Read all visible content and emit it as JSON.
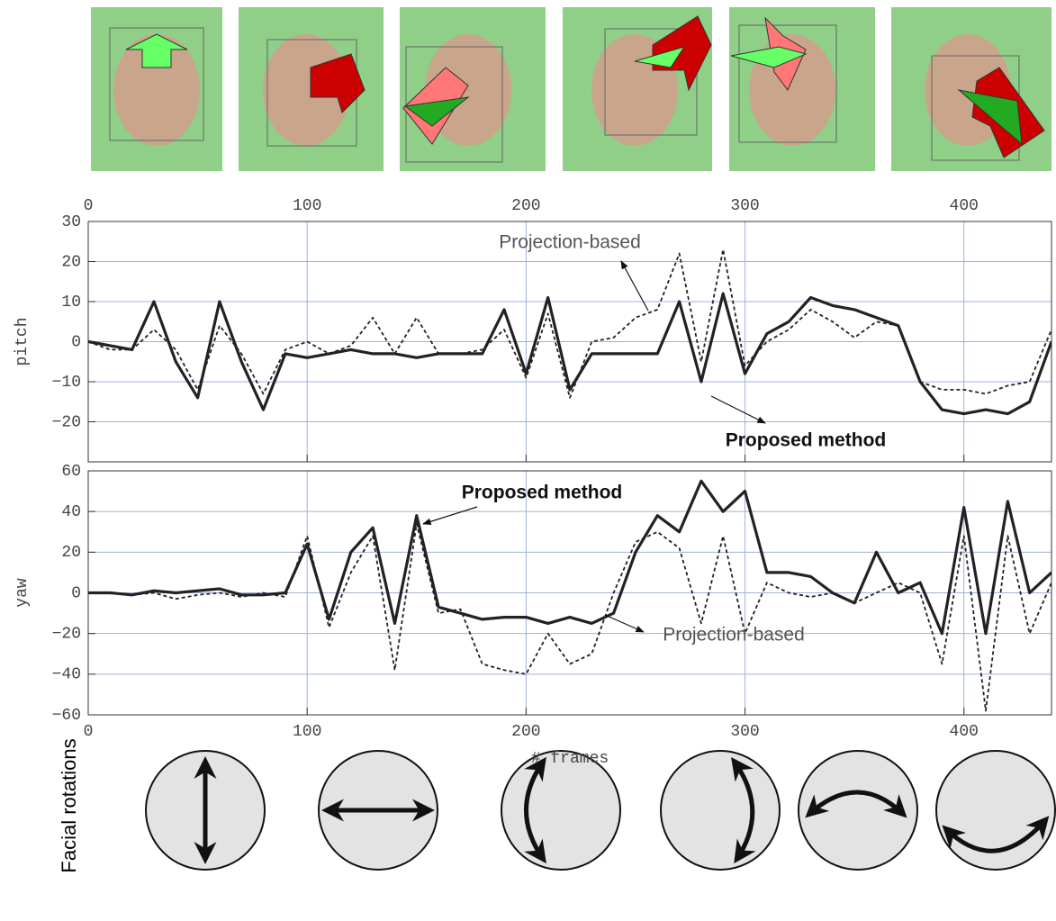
{
  "chart_data": [
    {
      "type": "line",
      "ylabel": "pitch",
      "x": [
        0,
        10,
        20,
        30,
        40,
        50,
        60,
        70,
        80,
        90,
        100,
        110,
        120,
        130,
        140,
        150,
        160,
        170,
        180,
        190,
        200,
        210,
        220,
        230,
        240,
        250,
        260,
        270,
        280,
        290,
        300,
        310,
        320,
        330,
        340,
        350,
        360,
        370,
        380,
        390,
        400,
        410,
        420,
        430,
        440
      ],
      "series": [
        {
          "name": "Proposed method",
          "color": "#222222",
          "dashed": false,
          "values": [
            0,
            -1,
            -2,
            10,
            -5,
            -14,
            10,
            -5,
            -17,
            -3,
            -4,
            -3,
            -2,
            -3,
            -3,
            -4,
            -3,
            -3,
            -3,
            8,
            -8,
            11,
            -12,
            -3,
            -3,
            -3,
            -3,
            10,
            -10,
            12,
            -8,
            2,
            5,
            11,
            9,
            8,
            6,
            4,
            -10,
            -17,
            -18,
            -17,
            -18,
            -15,
            0
          ]
        },
        {
          "name": "Projection-based",
          "color": "#222222",
          "dashed": true,
          "values": [
            0,
            -2,
            -2,
            3,
            -2,
            -12,
            4,
            -3,
            -13,
            -2,
            0,
            -3,
            -1,
            6,
            -3,
            6,
            -3,
            -3,
            -2,
            3,
            -9,
            7,
            -14,
            0,
            1,
            6,
            8,
            22,
            -5,
            23,
            -6,
            0,
            3,
            8,
            5,
            1,
            5,
            4,
            -10,
            -12,
            -12,
            -13,
            -11,
            -10,
            3
          ]
        }
      ],
      "xlim": [
        0,
        440
      ],
      "xticks": [
        0,
        100,
        200,
        300,
        400
      ],
      "ylim": [
        -30,
        30
      ],
      "yticks": [
        30,
        20,
        10,
        0,
        {
          "value": -10,
          "label": "−10"
        },
        {
          "value": -20,
          "label": "−20"
        }
      ],
      "grid": true
    },
    {
      "type": "line",
      "ylabel": "yaw",
      "xlabel": "# frames",
      "x": [
        0,
        10,
        20,
        30,
        40,
        50,
        60,
        70,
        80,
        90,
        100,
        110,
        120,
        130,
        140,
        150,
        160,
        170,
        180,
        190,
        200,
        210,
        220,
        230,
        240,
        250,
        260,
        270,
        280,
        290,
        300,
        310,
        320,
        330,
        340,
        350,
        360,
        370,
        380,
        390,
        400,
        410,
        420,
        430,
        440
      ],
      "series": [
        {
          "name": "Proposed method",
          "color": "#222222",
          "dashed": false,
          "values": [
            0,
            0,
            -1,
            1,
            0,
            1,
            2,
            -1,
            -1,
            0,
            24,
            -13,
            20,
            32,
            -15,
            38,
            -7,
            -10,
            -13,
            -12,
            -12,
            -15,
            -12,
            -15,
            -10,
            20,
            38,
            30,
            55,
            40,
            50,
            10,
            10,
            8,
            0,
            -5,
            20,
            0,
            5,
            -20,
            42,
            -20,
            45,
            0,
            10
          ]
        },
        {
          "name": "Projection-based",
          "color": "#222222",
          "dashed": true,
          "values": [
            0,
            0,
            -1,
            0,
            -3,
            -1,
            0,
            -2,
            0,
            -2,
            28,
            -17,
            10,
            28,
            -38,
            34,
            -10,
            -8,
            -35,
            -38,
            -40,
            -20,
            -35,
            -30,
            0,
            25,
            30,
            22,
            -15,
            28,
            -20,
            5,
            0,
            -2,
            0,
            -5,
            0,
            5,
            0,
            -35,
            28,
            -58,
            28,
            -20,
            5
          ]
        }
      ],
      "xlim": [
        0,
        440
      ],
      "xticks": [
        0,
        100,
        200,
        300,
        400
      ],
      "ylim": [
        -60,
        60
      ],
      "yticks": [
        60,
        40,
        20,
        0,
        {
          "value": -20,
          "label": "−20"
        },
        {
          "value": -40,
          "label": "−40"
        },
        {
          "value": -60,
          "label": "−60"
        }
      ],
      "grid": true
    }
  ],
  "side_label": "Facial rotations"
}
